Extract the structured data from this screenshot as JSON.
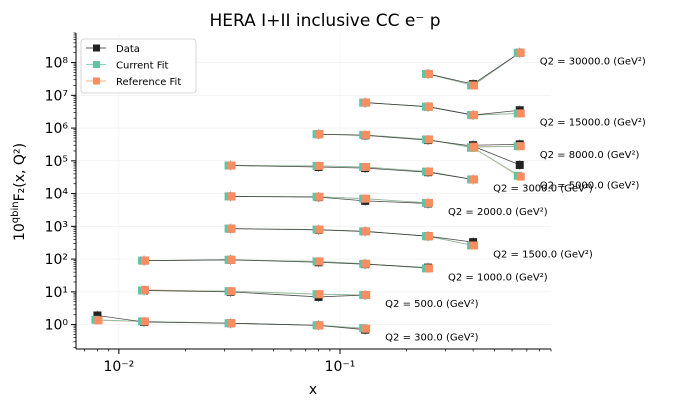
{
  "chart_data": {
    "type": "line",
    "title": "HERA I+II inclusive CC e⁻ p",
    "xlabel": "x",
    "ylabel": "10^{qbin} F₂(x, Q²)",
    "xscale": "log",
    "yscale": "log",
    "xlim": [
      0.0064,
      0.9
    ],
    "ylim": [
      0.18,
      800000000
    ],
    "x_ticks": [
      {
        "value": 0.01,
        "label": "10⁻²"
      },
      {
        "value": 0.1,
        "label": "10⁻¹"
      }
    ],
    "y_ticks": [
      {
        "value": 1,
        "label": "10⁰"
      },
      {
        "value": 10,
        "label": "10¹"
      },
      {
        "value": 100,
        "label": "10²"
      },
      {
        "value": 1000,
        "label": "10³"
      },
      {
        "value": 10000,
        "label": "10⁴"
      },
      {
        "value": 100000,
        "label": "10⁵"
      },
      {
        "value": 1000000,
        "label": "10⁶"
      },
      {
        "value": 10000000,
        "label": "10⁷"
      },
      {
        "value": 100000000,
        "label": "10⁸"
      }
    ],
    "legend": {
      "position": "top-left",
      "entries": [
        "Data",
        "Current Fit",
        "Reference Fit"
      ]
    },
    "colors": {
      "data": "#222222",
      "current": "#66c2a5",
      "reference": "#fc8d62"
    },
    "grid": true,
    "q2_bins": [
      {
        "label": "Q2 = 300.0 (GeV²)",
        "x": [
          0.008,
          0.013,
          0.032,
          0.08,
          0.13
        ],
        "data": [
          1.9,
          1.2,
          1.1,
          0.95,
          0.7
        ],
        "current": [
          1.4,
          1.25,
          1.1,
          0.95,
          0.78
        ],
        "reference": [
          1.35,
          1.25,
          1.1,
          0.95,
          0.75
        ]
      },
      {
        "label": "Q2 = 500.0 (GeV²)",
        "x": [
          0.013,
          0.032,
          0.08,
          0.13
        ],
        "data": [
          11,
          10,
          7,
          8
        ],
        "current": [
          11,
          10.5,
          8.5,
          8
        ],
        "reference": [
          11.5,
          10.5,
          8.5,
          8
        ]
      },
      {
        "label": "Q2 = 1000.0 (GeV²)",
        "x": [
          0.013,
          0.032,
          0.08,
          0.13,
          0.25
        ],
        "data": [
          90,
          95,
          80,
          70,
          55
        ],
        "current": [
          90,
          95,
          85,
          72,
          52
        ],
        "reference": [
          90,
          95,
          85,
          72,
          52
        ]
      },
      {
        "label": "Q2 = 1500.0 (GeV²)",
        "x": [
          0.032,
          0.08,
          0.13,
          0.25,
          0.4
        ],
        "data": [
          850,
          780,
          700,
          500,
          330
        ],
        "current": [
          850,
          800,
          700,
          500,
          260
        ],
        "reference": [
          850,
          800,
          700,
          500,
          260
        ]
      },
      {
        "label": "Q2 = 2000.0 (GeV²)",
        "x": [
          0.032,
          0.08,
          0.13,
          0.25
        ],
        "data": [
          8200,
          7800,
          6000,
          5000
        ],
        "current": [
          8200,
          8000,
          7000,
          5200
        ],
        "reference": [
          8200,
          8000,
          7000,
          5200
        ]
      },
      {
        "label": "Q2 = 3000.0 (GeV²)",
        "x": [
          0.032,
          0.08,
          0.13,
          0.25,
          0.4
        ],
        "data": [
          72000,
          65000,
          60000,
          45000,
          27000
        ],
        "current": [
          72000,
          70000,
          65000,
          47000,
          27000
        ],
        "reference": [
          72000,
          70000,
          65000,
          47000,
          27000
        ]
      },
      {
        "label": "Q2 = 5000.0 (GeV²)",
        "x": [
          0.08,
          0.13,
          0.25,
          0.4,
          0.65
        ],
        "data": [
          650000,
          600000,
          430000,
          280000,
          75000
        ],
        "current": [
          650000,
          620000,
          450000,
          250000,
          35000
        ],
        "reference": [
          650000,
          620000,
          450000,
          250000,
          33000
        ]
      },
      {
        "label": "Q2 = 8000.0 (GeV²)",
        "x": [
          0.4,
          0.65
        ],
        "data": [
          300000,
          320000
        ],
        "current": [
          260000,
          280000
        ],
        "reference": [
          270000,
          280000
        ]
      },
      {
        "label": "Q2 = 15000.0 (GeV²)",
        "x": [
          0.13,
          0.25,
          0.4,
          0.65
        ],
        "data": [
          6000000,
          4500000,
          2500000,
          3500000
        ],
        "current": [
          6000000,
          4500000,
          2500000,
          2800000
        ],
        "reference": [
          6000000,
          4500000,
          2500000,
          2800000
        ]
      },
      {
        "label": "Q2 = 30000.0 (GeV²)",
        "x": [
          0.25,
          0.4,
          0.65
        ],
        "data": [
          45000000,
          22000000,
          200000000
        ],
        "current": [
          45000000,
          20000000,
          200000000
        ],
        "reference": [
          45000000,
          20000000,
          200000000
        ]
      }
    ]
  }
}
